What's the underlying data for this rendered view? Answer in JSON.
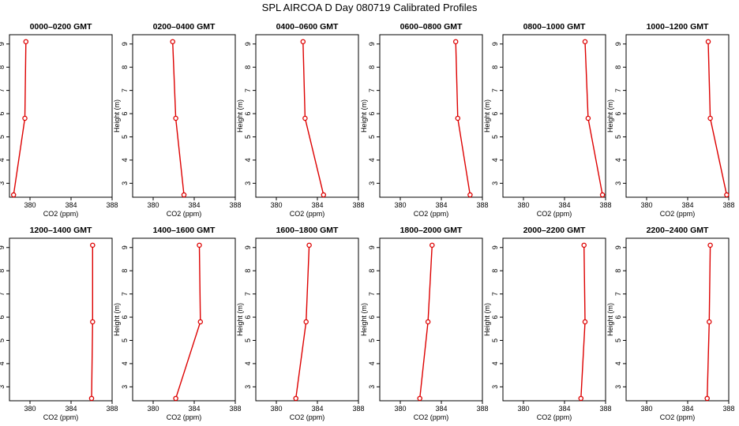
{
  "title": "SPL AIRCOA D  Day 080719  Calibrated Profiles",
  "chart_data": {
    "type": "line",
    "xlabel": "CO2 (ppm)",
    "ylabel": "Height (m)",
    "xlim": [
      378,
      388
    ],
    "ylim": [
      2.4,
      9.4
    ],
    "xticks": [
      380,
      384,
      388
    ],
    "yticks": [
      3,
      4,
      5,
      6,
      7,
      8,
      9
    ],
    "grid": false,
    "heights": [
      9.1,
      5.8,
      2.5
    ],
    "panels": [
      {
        "title": "0000–0200 GMT",
        "co2": [
          379.6,
          379.5,
          378.4
        ]
      },
      {
        "title": "0200–0400 GMT",
        "co2": [
          381.9,
          382.2,
          383.0
        ]
      },
      {
        "title": "0400–0600 GMT",
        "co2": [
          382.6,
          382.8,
          384.6
        ]
      },
      {
        "title": "0600–0800 GMT",
        "co2": [
          385.4,
          385.6,
          386.8
        ]
      },
      {
        "title": "0800–1000 GMT",
        "co2": [
          386.0,
          386.3,
          387.7
        ]
      },
      {
        "title": "1000–1200 GMT",
        "co2": [
          386.0,
          386.2,
          387.8
        ]
      },
      {
        "title": "1200–1400 GMT",
        "co2": [
          386.1,
          386.1,
          386.0
        ]
      },
      {
        "title": "1400–1600 GMT",
        "co2": [
          384.5,
          384.6,
          382.2
        ]
      },
      {
        "title": "1600–1800 GMT",
        "co2": [
          383.2,
          382.9,
          381.9
        ]
      },
      {
        "title": "1800–2000 GMT",
        "co2": [
          383.1,
          382.7,
          381.9
        ]
      },
      {
        "title": "2000–2200 GMT",
        "co2": [
          385.9,
          386.0,
          385.6
        ]
      },
      {
        "title": "2200–2400 GMT",
        "co2": [
          386.2,
          386.1,
          385.9
        ]
      }
    ]
  }
}
